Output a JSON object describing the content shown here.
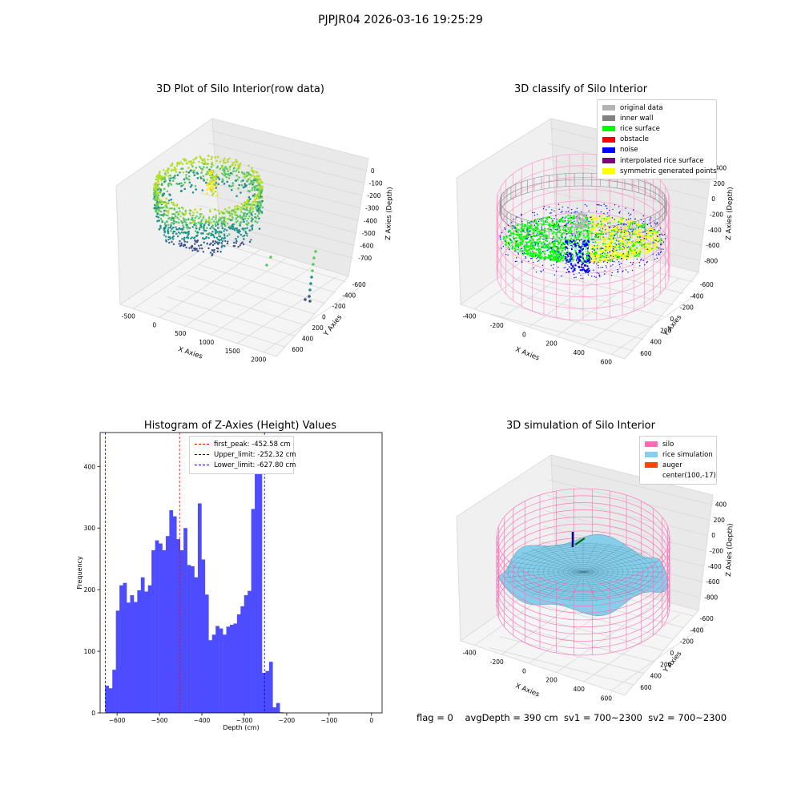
{
  "suptitle": "PJPJR04 2026-03-16 19:25:29",
  "footer": "flag = 0    avgDepth = 390 cm  sv1 = 700~2300  sv2 = 700~2300",
  "chart_data": [
    {
      "type": "scatter",
      "title": "3D Plot of Silo Interior(row data)",
      "xlabel": "X Axies",
      "ylabel": "Y Axies",
      "zlabel": "Z Axies (Depth)",
      "x_ticks": [
        "-500",
        "0",
        "500",
        "1000",
        "1500",
        "2000"
      ],
      "y_ticks": [
        "600",
        "400",
        "200",
        "0",
        "-200",
        "-400",
        "-600"
      ],
      "z_ticks": [
        "0",
        "-100",
        "-200",
        "-300",
        "-400",
        "-500",
        "-600",
        "-700"
      ],
      "colormap": "viridis"
    },
    {
      "type": "scatter",
      "title": "3D classify of Silo Interior",
      "xlabel": "X Axies",
      "ylabel": "Y Axies",
      "zlabel": "Z Axies (Depth)",
      "x_ticks": [
        "-400",
        "-200",
        "0",
        "200",
        "400",
        "600"
      ],
      "y_ticks": [
        "600",
        "400",
        "200",
        "0",
        "-200",
        "-400",
        "-600"
      ],
      "z_ticks": [
        "400",
        "200",
        "0",
        "-200",
        "-400",
        "-600",
        "-800"
      ],
      "legend": [
        {
          "label": "original data",
          "color": "#b3b3b3"
        },
        {
          "label": "inner wall",
          "color": "#808080"
        },
        {
          "label": "rice surface",
          "color": "#00ff00"
        },
        {
          "label": "obstacle",
          "color": "#ff0000"
        },
        {
          "label": "noise",
          "color": "#0000ff"
        },
        {
          "label": "interpolated rice surface",
          "color": "#800080"
        },
        {
          "label": "symmetric generated points",
          "color": "#ffff00"
        }
      ]
    },
    {
      "type": "bar",
      "title": "Histogram of Z-Axies (Height) Values",
      "xlabel": "Depth (cm)",
      "ylabel": "Frequency",
      "xlim": [
        -640,
        25
      ],
      "ylim": [
        0,
        455
      ],
      "x_ticks": [
        -600,
        -500,
        -400,
        -300,
        -200,
        -100,
        0
      ],
      "y_ticks": [
        0,
        100,
        200,
        300,
        400
      ],
      "bar_color": "#4d4dff",
      "bin_start": -628,
      "bin_width": 8.4,
      "values": [
        44,
        40,
        70,
        166,
        207,
        211,
        179,
        191,
        180,
        199,
        220,
        197,
        207,
        264,
        280,
        275,
        264,
        287,
        329,
        319,
        282,
        264,
        300,
        240,
        238,
        220,
        340,
        249,
        192,
        118,
        127,
        141,
        137,
        127,
        140,
        143,
        145,
        160,
        173,
        191,
        198,
        331,
        410,
        434,
        65,
        68,
        83,
        9,
        16,
        1
      ],
      "vlines": [
        {
          "label": "first_peak: -452.58 cm",
          "x": -452.58,
          "color": "#ff0000"
        },
        {
          "label": "Upper_limit: -252.32 cm",
          "x": -252.32,
          "color": "#0000cc"
        },
        {
          "label": "Lower_limit: -627.80 cm",
          "x": -627.8,
          "color": "#0000cc"
        }
      ]
    },
    {
      "type": "area",
      "title": "3D simulation of Silo Interior",
      "xlabel": "X Axies",
      "ylabel": "Y Axies",
      "zlabel": "Z Axies (Depth)",
      "x_ticks": [
        "-400",
        "-200",
        "0",
        "200",
        "400",
        "600"
      ],
      "y_ticks": [
        "600",
        "400",
        "200",
        "0",
        "-200",
        "-400",
        "-600"
      ],
      "z_ticks": [
        "400",
        "200",
        "0",
        "-200",
        "-400",
        "-600",
        "-800"
      ],
      "legend": [
        {
          "label": "silo",
          "color": "#ff69b4"
        },
        {
          "label": "rice simulation",
          "color": "#87ceeb"
        },
        {
          "label": "auger",
          "color": "#ff4500"
        },
        {
          "label": "center(100,-17)",
          "color": ""
        }
      ]
    }
  ]
}
